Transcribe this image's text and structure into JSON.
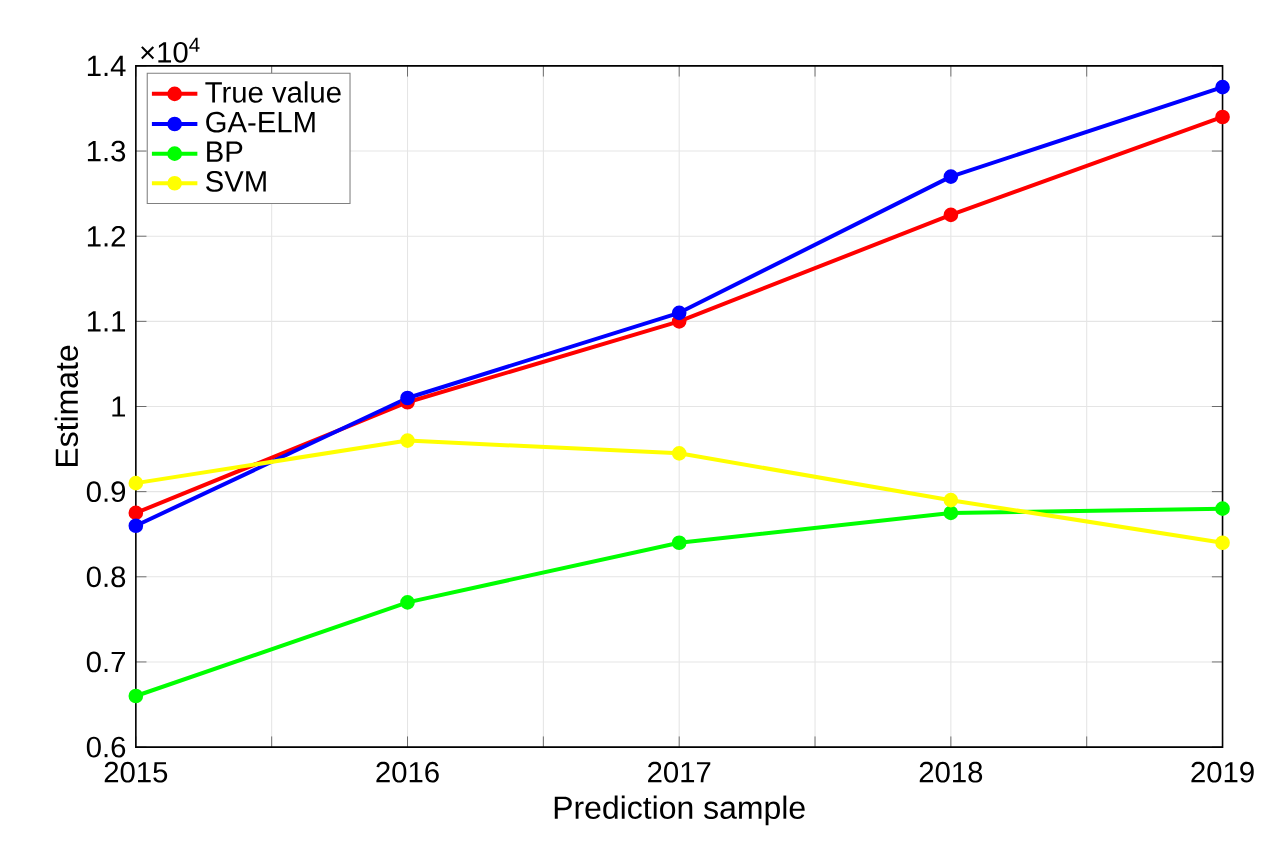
{
  "chart_data": {
    "type": "line",
    "xlabel": "Prediction sample",
    "ylabel": "Estimate",
    "annotations": [
      "×10$^{4}$"
    ],
    "x": [
      2015,
      2016,
      2017,
      2018,
      2019
    ],
    "series": [
      {
        "name": "True value",
        "color": "#ff0000",
        "values": [
          0.875,
          1.005,
          1.1,
          1.225,
          1.34
        ]
      },
      {
        "name": "GA-ELM",
        "color": "#0000ff",
        "values": [
          0.86,
          1.01,
          1.11,
          1.27,
          1.375
        ]
      },
      {
        "name": "BP",
        "color": "#00ff00",
        "values": [
          0.66,
          0.77,
          0.84,
          0.875,
          0.88
        ]
      },
      {
        "name": "SVM",
        "color": "#ffff00",
        "values": [
          0.91,
          0.96,
          0.945,
          0.89,
          0.84
        ]
      }
    ],
    "xlim": [
      2015,
      2019
    ],
    "xticks": [
      2015,
      {
        "value": 2015.5,
        "label": null
      },
      2016,
      {
        "value": 2016.5,
        "label": null
      },
      2017,
      {
        "value": 2017.5,
        "label": null
      },
      2018,
      {
        "value": 2018.5,
        "label": null
      },
      2019
    ],
    "ylim": [
      0.6,
      1.4
    ],
    "yticks": [
      0.6,
      0.7,
      0.8,
      0.9,
      1,
      1.1,
      1.2,
      1.3,
      1.4
    ],
    "grid": true,
    "legend": "top left",
    "marker": "circle",
    "line_style": "solid"
  }
}
